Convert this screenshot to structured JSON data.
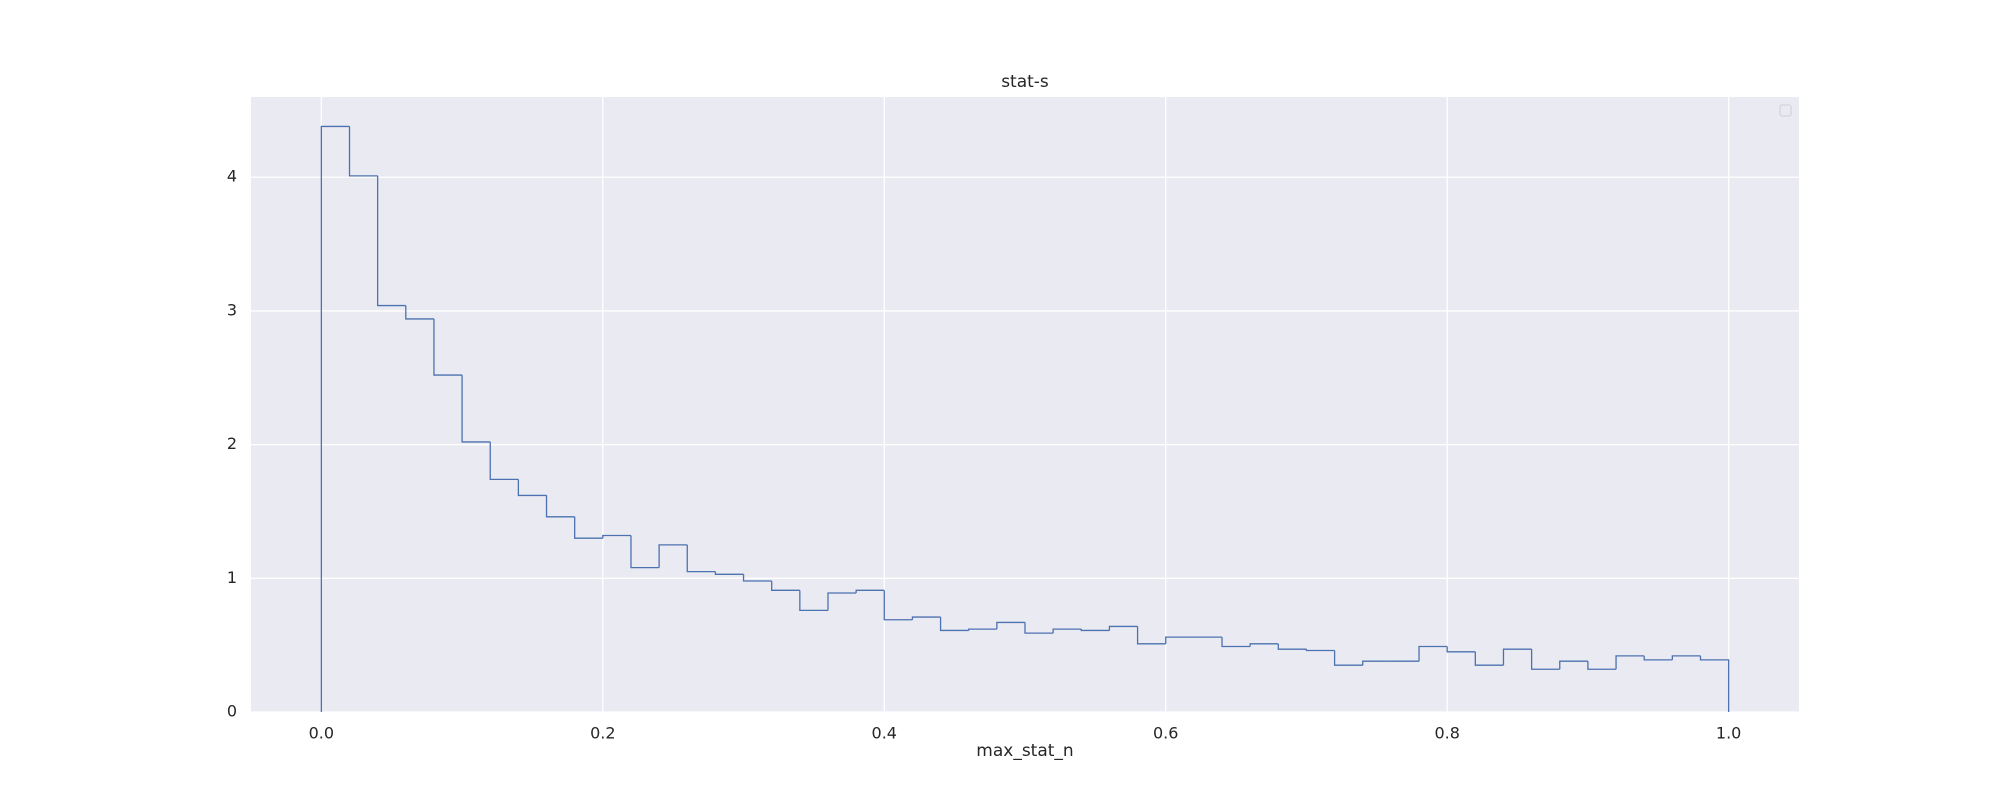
{
  "chart_data": {
    "type": "histogram",
    "title": "stat-s",
    "x_label": "max_stat_n",
    "color": "#4c72b0",
    "histtype": "step",
    "grid": true,
    "bins": [
      0,
      0.02,
      0.04,
      0.06,
      0.08,
      0.1,
      0.12,
      0.14,
      0.16,
      0.18,
      0.2,
      0.22,
      0.24,
      0.26,
      0.28,
      0.3,
      0.32,
      0.34,
      0.36,
      0.38,
      0.4,
      0.42,
      0.44,
      0.46,
      0.48,
      0.5,
      0.52,
      0.54,
      0.56,
      0.58,
      0.6,
      0.62,
      0.64,
      0.66,
      0.68,
      0.7,
      0.72,
      0.74,
      0.76,
      0.78,
      0.8,
      0.82,
      0.84,
      0.86,
      0.88,
      0.9,
      0.92,
      0.94,
      0.96,
      0.98,
      1
    ],
    "values": [
      4.38,
      4.01,
      3.04,
      2.94,
      2.52,
      2.02,
      1.74,
      1.62,
      1.46,
      1.3,
      1.32,
      1.08,
      1.25,
      1.05,
      1.03,
      0.98,
      0.91,
      0.76,
      0.89,
      0.91,
      0.69,
      0.71,
      0.61,
      0.62,
      0.67,
      0.59,
      0.62,
      0.61,
      0.64,
      0.51,
      0.56,
      0.56,
      0.49,
      0.51,
      0.47,
      0.46,
      0.35,
      0.38,
      0.38,
      0.49,
      0.45,
      0.35,
      0.47,
      0.32,
      0.38,
      0.32,
      0.42,
      0.39,
      0.42,
      0.39
    ],
    "xlim": [
      -0.05,
      1.05
    ],
    "xticks": [
      {
        "value": 0,
        "label": "0.0"
      },
      0.2,
      0.4,
      0.6,
      0.8,
      {
        "value": 1,
        "label": "1.0"
      }
    ],
    "ylim": [
      0,
      4.6
    ],
    "yticks": [
      0,
      1,
      2,
      3,
      4
    ]
  }
}
